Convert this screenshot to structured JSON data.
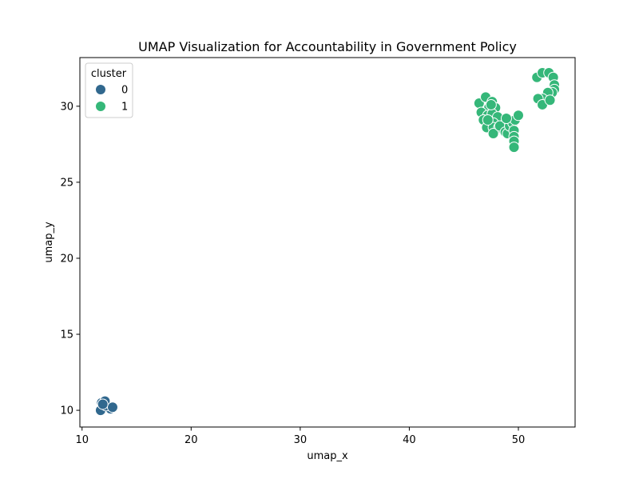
{
  "chart_data": {
    "type": "scatter",
    "title": "UMAP Visualization for Accountability in Government Policy",
    "xlabel": "umap_x",
    "ylabel": "umap_y",
    "xlim": [
      9.8,
      55.2
    ],
    "ylim": [
      8.9,
      33.2
    ],
    "xticks": [
      10,
      20,
      30,
      40,
      50
    ],
    "yticks": [
      10,
      15,
      20,
      25,
      30
    ],
    "grid": false,
    "legend": {
      "title": "cluster",
      "placement": "top-left",
      "entries": [
        {
          "label": "0",
          "color": "#31688e"
        },
        {
          "label": "1",
          "color": "#35b779"
        }
      ]
    },
    "series": [
      {
        "name": "0",
        "color": "#31688e",
        "points": [
          [
            11.7,
            10.0
          ],
          [
            12.6,
            10.1
          ],
          [
            12.2,
            10.3
          ],
          [
            11.8,
            10.5
          ],
          [
            12.1,
            10.6
          ],
          [
            12.8,
            10.2
          ],
          [
            11.9,
            10.4
          ]
        ]
      },
      {
        "name": "1",
        "color": "#35b779",
        "points": [
          [
            46.4,
            30.2
          ],
          [
            47.0,
            30.6
          ],
          [
            47.6,
            30.3
          ],
          [
            47.3,
            29.9
          ],
          [
            47.9,
            29.9
          ],
          [
            46.6,
            29.6
          ],
          [
            47.2,
            29.4
          ],
          [
            47.6,
            29.5
          ],
          [
            48.1,
            29.3
          ],
          [
            46.8,
            29.1
          ],
          [
            47.3,
            28.9
          ],
          [
            47.7,
            28.9
          ],
          [
            47.1,
            28.6
          ],
          [
            47.7,
            28.6
          ],
          [
            48.2,
            28.6
          ],
          [
            47.7,
            28.2
          ],
          [
            48.3,
            28.7
          ],
          [
            48.8,
            28.3
          ],
          [
            49.0,
            28.2
          ],
          [
            49.2,
            28.7
          ],
          [
            49.5,
            28.9
          ],
          [
            49.7,
            29.1
          ],
          [
            48.9,
            29.2
          ],
          [
            49.6,
            28.4
          ],
          [
            49.6,
            28.0
          ],
          [
            49.6,
            27.7
          ],
          [
            49.6,
            27.3
          ],
          [
            50.0,
            29.4
          ],
          [
            47.2,
            29.1
          ],
          [
            47.5,
            30.1
          ],
          [
            51.7,
            31.9
          ],
          [
            52.2,
            32.2
          ],
          [
            52.8,
            32.2
          ],
          [
            53.2,
            31.9
          ],
          [
            53.3,
            31.4
          ],
          [
            53.3,
            31.1
          ],
          [
            53.1,
            30.9
          ],
          [
            52.7,
            30.9
          ],
          [
            52.2,
            30.5
          ],
          [
            51.8,
            30.5
          ],
          [
            52.2,
            30.1
          ],
          [
            52.9,
            30.4
          ]
        ]
      }
    ]
  }
}
